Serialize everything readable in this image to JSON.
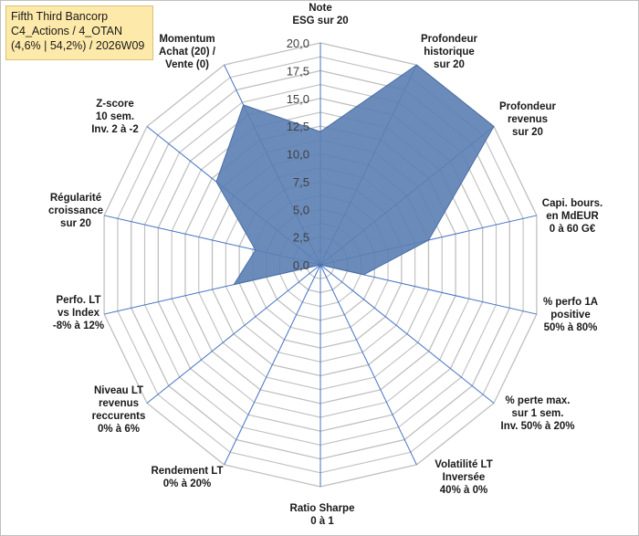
{
  "info": {
    "line1": "Fifth Third Bancorp",
    "line2": "C4_Actions / 4_OTAN",
    "line3": "(4,6% | 54,2%) / 2026W09"
  },
  "chart_data": {
    "type": "radar",
    "rmax": 20,
    "ticks": [
      "0,0",
      "2,5",
      "5,0",
      "7,5",
      "10,0",
      "12,5",
      "15,0",
      "17,5",
      "20,0"
    ],
    "tick_values": [
      0,
      2.5,
      5,
      7.5,
      10,
      12.5,
      15,
      17.5,
      20
    ],
    "grid_rings": [
      1.25,
      2.5,
      3.75,
      5,
      6.25,
      7.5,
      8.75,
      10,
      11.25,
      12.5,
      13.75,
      15,
      16.25,
      17.5,
      18.75,
      20
    ],
    "axes": [
      {
        "label": [
          "Note",
          "ESG sur 20"
        ],
        "value": 12
      },
      {
        "label": [
          "Profondeur",
          "historique",
          "sur 20"
        ],
        "value": 20
      },
      {
        "label": [
          "Profondeur",
          "revenus",
          "sur 20"
        ],
        "value": 20
      },
      {
        "label": [
          "Capi. bours.",
          "en MdEUR",
          "0 à 60 G€"
        ],
        "value": 10
      },
      {
        "label": [
          "% perfo 1A",
          "positive",
          "50% à 80%"
        ],
        "value": 4
      },
      {
        "label": [
          "% perte max.",
          "sur 1 sem.",
          "Inv. 50% à 20%"
        ],
        "value": 0
      },
      {
        "label": [
          "Volatilité LT",
          "Inversée",
          "40% à 0%"
        ],
        "value": 0
      },
      {
        "label": [
          "Ratio Sharpe",
          "0 à 1"
        ],
        "value": 0
      },
      {
        "label": [
          "Rendement LT",
          "0% à 20%"
        ],
        "value": 0
      },
      {
        "label": [
          "Niveau LT",
          "revenus",
          "reccurents",
          "0% à 6%"
        ],
        "value": 0
      },
      {
        "label": [
          "Perfo. LT",
          "vs Index",
          "-8% à 12%"
        ],
        "value": 8
      },
      {
        "label": [
          "Régularité",
          "croissance",
          "sur 20"
        ],
        "value": 6
      },
      {
        "label": [
          "Z-score",
          "10 sem.",
          "Inv. 2 à -2"
        ],
        "value": 12
      },
      {
        "label": [
          "Momentum",
          "Achat (20) /",
          "Vente (0)"
        ],
        "value": 16
      }
    ],
    "series": [
      {
        "name": "Score",
        "fill": "#5b7fb4",
        "stroke": "#4a6da3"
      }
    ],
    "grid_color": "#bfbfbf",
    "axis_color": "#4472c4"
  }
}
